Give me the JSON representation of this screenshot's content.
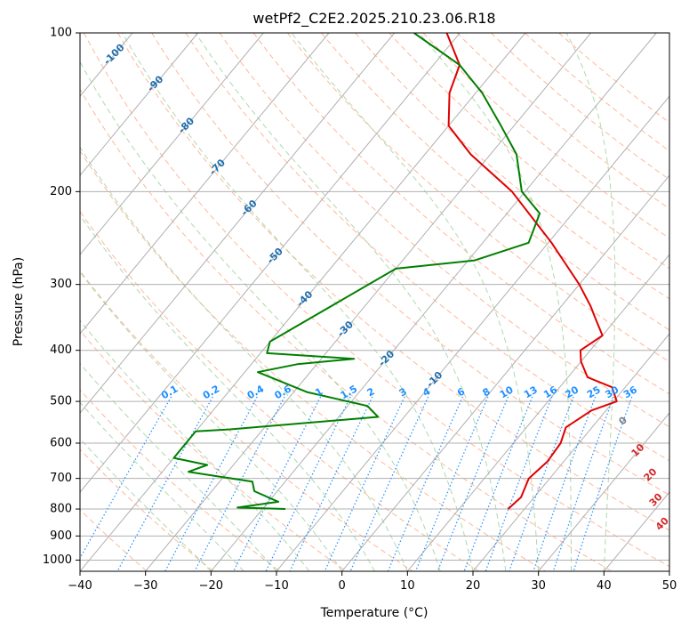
{
  "chart_data": {
    "type": "line",
    "diagram": "Skew-T log-P",
    "title": "wetPf2_C2E2.2025.210.23.06.R18",
    "xlabel": "Temperature (°C)",
    "ylabel": "Pressure (hPa)",
    "xlim": [
      -40,
      50
    ],
    "ylim": [
      1050,
      100
    ],
    "y_scale": "log",
    "x_ticks": [
      -40,
      -30,
      -20,
      -10,
      0,
      10,
      20,
      30,
      40,
      50
    ],
    "x_tick_labels": [
      "−40",
      "−30",
      "−20",
      "−10",
      "0",
      "10",
      "20",
      "30",
      "40",
      "50"
    ],
    "y_ticks": [
      100,
      200,
      300,
      400,
      500,
      600,
      700,
      800,
      900,
      1000
    ],
    "y_tick_labels": [
      "100",
      "200",
      "300",
      "400",
      "500",
      "600",
      "700",
      "800",
      "900",
      "1000"
    ],
    "grid": true,
    "series": [
      {
        "type": "temperature",
        "color": "#e00000",
        "points": [
          {
            "p": 800,
            "t": 17.5
          },
          {
            "p": 760,
            "t": 18.0
          },
          {
            "p": 700,
            "t": 16.8
          },
          {
            "p": 650,
            "t": 17.5
          },
          {
            "p": 600,
            "t": 17.2
          },
          {
            "p": 560,
            "t": 16.0
          },
          {
            "p": 520,
            "t": 17.8
          },
          {
            "p": 500,
            "t": 20.5
          },
          {
            "p": 470,
            "t": 18.0
          },
          {
            "p": 450,
            "t": 13.0
          },
          {
            "p": 420,
            "t": 10.0
          },
          {
            "p": 400,
            "t": 8.5
          },
          {
            "p": 375,
            "t": 10.0
          },
          {
            "p": 350,
            "t": 7.0
          },
          {
            "p": 330,
            "t": 4.5
          },
          {
            "p": 300,
            "t": 0.0
          },
          {
            "p": 250,
            "t": -9.5
          },
          {
            "p": 200,
            "t": -22.0
          },
          {
            "p": 170,
            "t": -33.0
          },
          {
            "p": 150,
            "t": -40.0
          },
          {
            "p": 130,
            "t": -44.0
          },
          {
            "p": 115,
            "t": -46.0
          },
          {
            "p": 100,
            "t": -52.0
          }
        ]
      },
      {
        "type": "dewpoint",
        "color": "#008000",
        "points": [
          {
            "p": 800,
            "t": -16.5
          },
          {
            "p": 795,
            "t": -24.0
          },
          {
            "p": 775,
            "t": -18.5
          },
          {
            "p": 740,
            "t": -23.5
          },
          {
            "p": 710,
            "t": -25.0
          },
          {
            "p": 680,
            "t": -36.0
          },
          {
            "p": 660,
            "t": -34.0
          },
          {
            "p": 640,
            "t": -40.0
          },
          {
            "p": 570,
            "t": -40.0
          },
          {
            "p": 565,
            "t": -35.0
          },
          {
            "p": 535,
            "t": -14.0
          },
          {
            "p": 510,
            "t": -17.0
          },
          {
            "p": 480,
            "t": -28.0
          },
          {
            "p": 440,
            "t": -38.0
          },
          {
            "p": 425,
            "t": -33.0
          },
          {
            "p": 415,
            "t": -25.0
          },
          {
            "p": 405,
            "t": -39.0
          },
          {
            "p": 385,
            "t": -40.0
          },
          {
            "p": 280,
            "t": -30.0
          },
          {
            "p": 270,
            "t": -19.0
          },
          {
            "p": 250,
            "t": -13.0
          },
          {
            "p": 220,
            "t": -15.0
          },
          {
            "p": 200,
            "t": -20.5
          },
          {
            "p": 170,
            "t": -26.0
          },
          {
            "p": 150,
            "t": -32.0
          },
          {
            "p": 130,
            "t": -39.0
          },
          {
            "p": 115,
            "t": -46.0
          },
          {
            "p": 100,
            "t": -57.0
          }
        ]
      }
    ],
    "isotherms_labels": [
      "-100",
      "-90",
      "-80",
      "-70",
      "-60",
      "-50",
      "-40",
      "-30",
      "-20",
      "-10"
    ],
    "mixing_ratio_labels": [
      "0.1",
      "0.2",
      "0.4",
      "0.6",
      "1",
      "1.5",
      "2",
      "3",
      "4",
      "6",
      "8",
      "10",
      "13",
      "16",
      "20",
      "25",
      "30",
      "36"
    ],
    "dry_adiabat_labels": [
      "0",
      "10",
      "20",
      "30",
      "40"
    ],
    "colors": {
      "isotherm": "#b0b0b0",
      "isotherm_label": "#1f6fb0",
      "mixing_ratio": "#1e90ff",
      "dry_adiabat": "#ffa07a",
      "dry_adiabat_label": "#d62728",
      "moist_adiabat": "#98d098",
      "isobar": "#b0b0b0",
      "frame": "#000000",
      "zero_label": "#808080"
    }
  }
}
